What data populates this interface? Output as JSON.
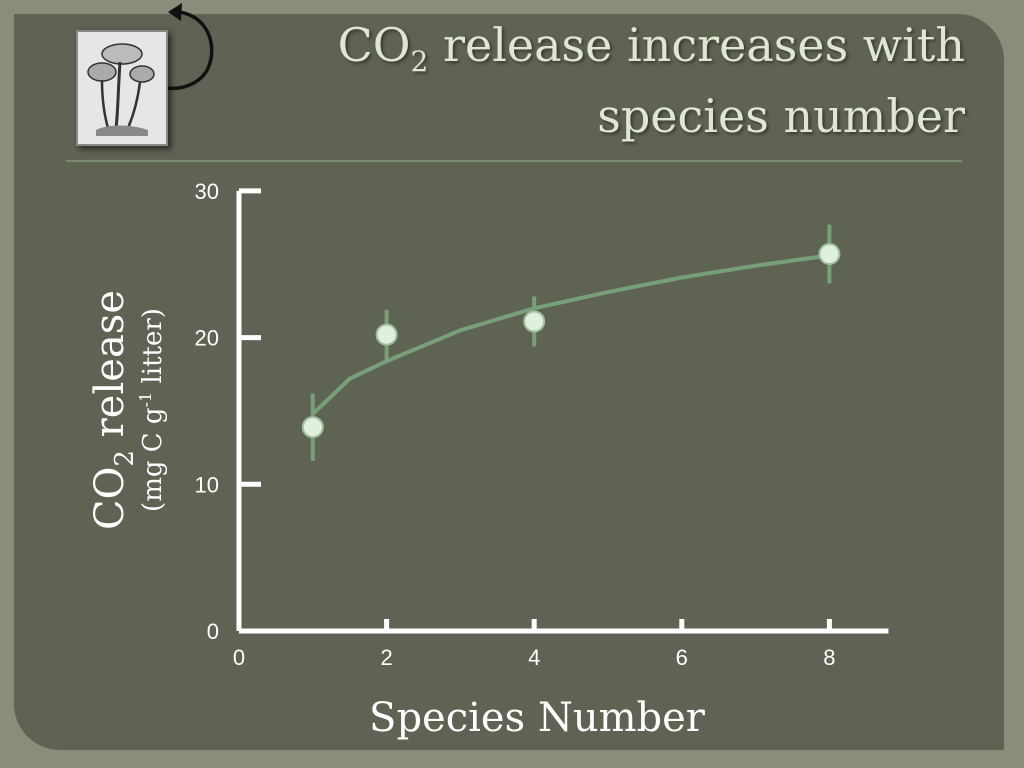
{
  "slide": {
    "title_line1_a": "CO",
    "title_line1_sub": "2",
    "title_line1_b": " release increases with",
    "title_line2": "species number",
    "image_icon": "mushroom-illustration",
    "arrow_icon": "curved-arrow-icon"
  },
  "colors": {
    "background": "#5f6354",
    "axis": "#ffffff",
    "curve": "#78a078",
    "marker": "#dff0de"
  },
  "chart_data": {
    "type": "scatter",
    "xlabel": "Species Number",
    "ylabel_main_a": "CO",
    "ylabel_main_sub": "2",
    "ylabel_main_b": " release",
    "ylabel_unit_a": "(mg C g",
    "ylabel_unit_sup": "-1",
    "ylabel_unit_b": " litter)",
    "xlim": [
      0,
      8.8
    ],
    "ylim": [
      0,
      30
    ],
    "xticks": [
      "0",
      "2",
      "4",
      "6",
      "8"
    ],
    "yticks": [
      "0",
      "10",
      "20",
      "30"
    ],
    "grid": false,
    "points": [
      {
        "x": 1,
        "y": 13.9,
        "err": 2.3
      },
      {
        "x": 2,
        "y": 20.2,
        "err": 1.7
      },
      {
        "x": 4,
        "y": 21.1,
        "err": 1.7
      },
      {
        "x": 8,
        "y": 25.7,
        "err": 2.0
      }
    ],
    "fit_curve": {
      "type": "logarithmic",
      "x": [
        1,
        1.5,
        2,
        3,
        4,
        5,
        6,
        7,
        8
      ],
      "y": [
        14.8,
        17.2,
        18.4,
        20.5,
        22.0,
        23.1,
        24.1,
        24.9,
        25.6
      ]
    }
  }
}
